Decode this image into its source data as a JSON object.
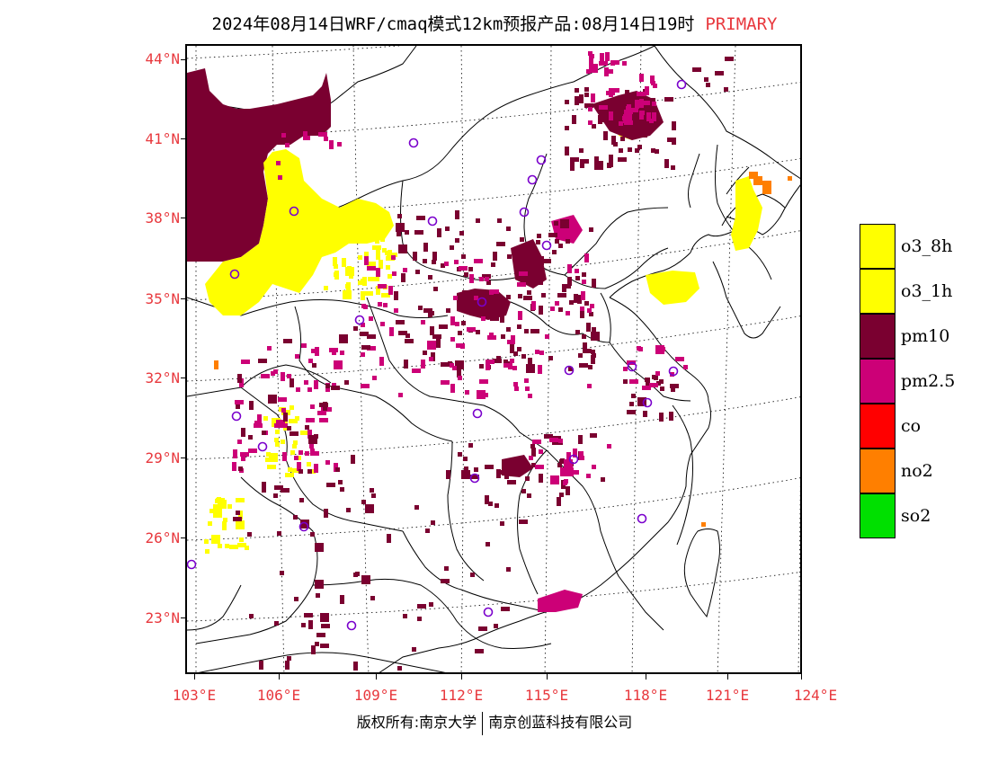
{
  "header": {
    "title": "2024年08月14日WRF/cmaq模式12km预报产品:08月14日19时",
    "tag": "PRIMARY"
  },
  "axes": {
    "lat_labels": [
      "44°N",
      "41°N",
      "38°N",
      "35°N",
      "32°N",
      "29°N",
      "26°N",
      "23°N"
    ],
    "lon_labels": [
      "103°E",
      "106°E",
      "109°E",
      "112°E",
      "115°E",
      "118°E",
      "121°E",
      "124°E"
    ]
  },
  "legend": {
    "items": [
      {
        "label": "o3_8h",
        "color": "#ffff00"
      },
      {
        "label": "o3_1h",
        "color": "#ffff00"
      },
      {
        "label": "pm10",
        "color": "#7a0030"
      },
      {
        "label": "pm2.5",
        "color": "#cc0077"
      },
      {
        "label": "co",
        "color": "#ff0000"
      },
      {
        "label": "no2",
        "color": "#ff7f00"
      },
      {
        "label": "so2",
        "color": "#00e000"
      }
    ]
  },
  "footer": {
    "left": "版权所有:南京大学",
    "right": "南京创蓝科技有限公司"
  },
  "colors": {
    "o3": "#ffff00",
    "pm10": "#7a0030",
    "pm25": "#cc0077",
    "no2": "#ff7f00",
    "station": "#7a00cc"
  }
}
